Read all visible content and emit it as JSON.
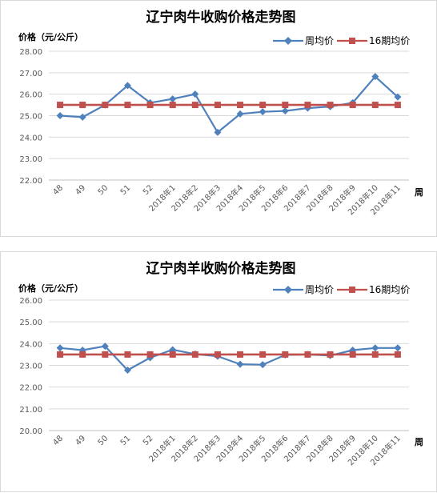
{
  "chart_data": [
    {
      "type": "line",
      "title": "辽宁肉牛收购价格走势图",
      "ylabel": "价格（元/公斤）",
      "xlabel": "周",
      "ylim": [
        22,
        28
      ],
      "yticks": [
        "22.00",
        "23.00",
        "24.00",
        "25.00",
        "26.00",
        "27.00",
        "28.00"
      ],
      "categories": [
        "48",
        "49",
        "50",
        "51",
        "52",
        "2018年1",
        "2018年2",
        "2018年3",
        "2018年4",
        "2018年5",
        "2018年6",
        "2018年7",
        "2018年8",
        "2018年9",
        "2018年10",
        "2018年11"
      ],
      "series": [
        {
          "name": "周均价",
          "color": "#4f81bd",
          "marker": "diamond",
          "values": [
            25.0,
            24.93,
            25.5,
            26.4,
            25.6,
            25.78,
            26.0,
            24.22,
            25.08,
            25.18,
            25.22,
            25.35,
            25.42,
            25.6,
            26.82,
            25.87
          ]
        },
        {
          "name": "16期均价",
          "color": "#c0504d",
          "marker": "square",
          "values": [
            25.5,
            25.5,
            25.5,
            25.5,
            25.5,
            25.5,
            25.5,
            25.5,
            25.5,
            25.5,
            25.5,
            25.5,
            25.5,
            25.5,
            25.5,
            25.5
          ]
        }
      ],
      "legend": "top-right",
      "grid": "horizontal"
    },
    {
      "type": "line",
      "title": "辽宁肉羊收购价格走势图",
      "ylabel": "价格（元/公斤）",
      "xlabel": "周",
      "ylim": [
        20,
        26
      ],
      "yticks": [
        "20.00",
        "21.00",
        "22.00",
        "23.00",
        "24.00",
        "25.00",
        "26.00"
      ],
      "categories": [
        "48",
        "49",
        "50",
        "51",
        "52",
        "2018年1",
        "2018年2",
        "2018年3",
        "2018年4",
        "2018年5",
        "2018年6",
        "2018年7",
        "2018年8",
        "2018年9",
        "2018年10",
        "2018年11"
      ],
      "series": [
        {
          "name": "周均价",
          "color": "#4f81bd",
          "marker": "diamond",
          "values": [
            23.8,
            23.7,
            23.88,
            22.78,
            23.35,
            23.72,
            23.52,
            23.42,
            23.05,
            23.03,
            23.48,
            23.5,
            23.45,
            23.7,
            23.8,
            23.8
          ]
        },
        {
          "name": "16期均价",
          "color": "#c0504d",
          "marker": "square",
          "values": [
            23.5,
            23.5,
            23.5,
            23.5,
            23.5,
            23.5,
            23.5,
            23.5,
            23.5,
            23.5,
            23.5,
            23.5,
            23.5,
            23.5,
            23.5,
            23.5
          ]
        }
      ],
      "legend": "top-right",
      "grid": "horizontal"
    }
  ]
}
